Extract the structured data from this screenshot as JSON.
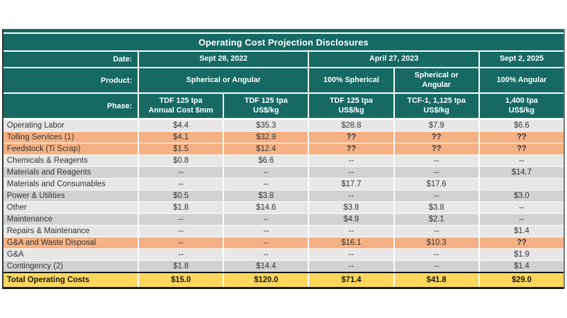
{
  "title": "Operating Cost Projection Disclosures",
  "colors": {
    "teal": "#166A63",
    "orange": "#F5B183",
    "gray-light": "#E7E7E7",
    "gray-dark": "#D2D2D2",
    "yellow": "#FBD75B"
  },
  "header": {
    "date_label": "Date:",
    "product_label": "Product:",
    "phase_label": "Phase:",
    "dates": [
      {
        "label": "Sept 28, 2022",
        "span": 2
      },
      {
        "label": "April 27, 2023",
        "span": 2
      },
      {
        "label": "Sept 2, 2025",
        "span": 1
      }
    ],
    "products": [
      {
        "label": "Spherical or Angular",
        "span": 2
      },
      {
        "label": "100% Spherical",
        "span": 1
      },
      {
        "label": "Spherical or\nAngular",
        "span": 1
      },
      {
        "label": "100% Angular",
        "span": 1
      }
    ],
    "phases": [
      "TDF 125 tpa\nAnnual Cost $mm",
      "TDF 125 tpa\nUS$/kg",
      "TDF 125 tpa\nUS$/kg",
      "TCF-1, 1,125 tpa\nUS$/kg",
      "1,400 tpa\nUS$/kg"
    ]
  },
  "rows": [
    {
      "label": "Operating Labor",
      "values": [
        "$4.4",
        "$35.3",
        "$28.8",
        "$7.9",
        "$6.6"
      ],
      "style": "light"
    },
    {
      "label": "Tolling Services (1)",
      "values": [
        "$4.1",
        "$32.9",
        "??",
        "??",
        "??"
      ],
      "style": "orange"
    },
    {
      "label": "Feedstock (Ti Scrap)",
      "values": [
        "$1.5",
        "$12.4",
        "??",
        "??",
        "??"
      ],
      "style": "orange"
    },
    {
      "label": "Chemicals & Reagents",
      "values": [
        "$0.8",
        "$6.6",
        "--",
        "--",
        "--"
      ],
      "style": "light"
    },
    {
      "label": "Materials and Reagents",
      "values": [
        "--",
        "--",
        "--",
        "--",
        "$14.7"
      ],
      "style": "dark"
    },
    {
      "label": "Materials and Consumables",
      "values": [
        "--",
        "--",
        "$17.7",
        "$17.6",
        ""
      ],
      "style": "light"
    },
    {
      "label": "Power & Utilities",
      "values": [
        "$0.5",
        "$3.8",
        "--",
        "--",
        "$3.0"
      ],
      "style": "dark"
    },
    {
      "label": "Other",
      "values": [
        "$1.8",
        "$14.6",
        "$3.8",
        "$3.8",
        "--"
      ],
      "style": "light"
    },
    {
      "label": "Maintenance",
      "values": [
        "--",
        "--",
        "$4.9",
        "$2.1",
        "--"
      ],
      "style": "dark"
    },
    {
      "label": "Repairs & Maintenance",
      "values": [
        "--",
        "--",
        "--",
        "--",
        "$1.4"
      ],
      "style": "light"
    },
    {
      "label": "G&A and Waste Disposal",
      "values": [
        "--",
        "--",
        "$16.1",
        "$10.3",
        "??"
      ],
      "style": "orange"
    },
    {
      "label": "G&A",
      "values": [
        "--",
        "--",
        "--",
        "--",
        "$1.9"
      ],
      "style": "light"
    },
    {
      "label": "Contingency (2)",
      "values": [
        "$1.8",
        "$14.4",
        "--",
        "--",
        "$1.4"
      ],
      "style": "dark"
    },
    {
      "label": "Total Operating Costs",
      "values": [
        "$15.0",
        "$120.0",
        "$71.4",
        "$41.8",
        "$29.0"
      ],
      "style": "total"
    }
  ]
}
